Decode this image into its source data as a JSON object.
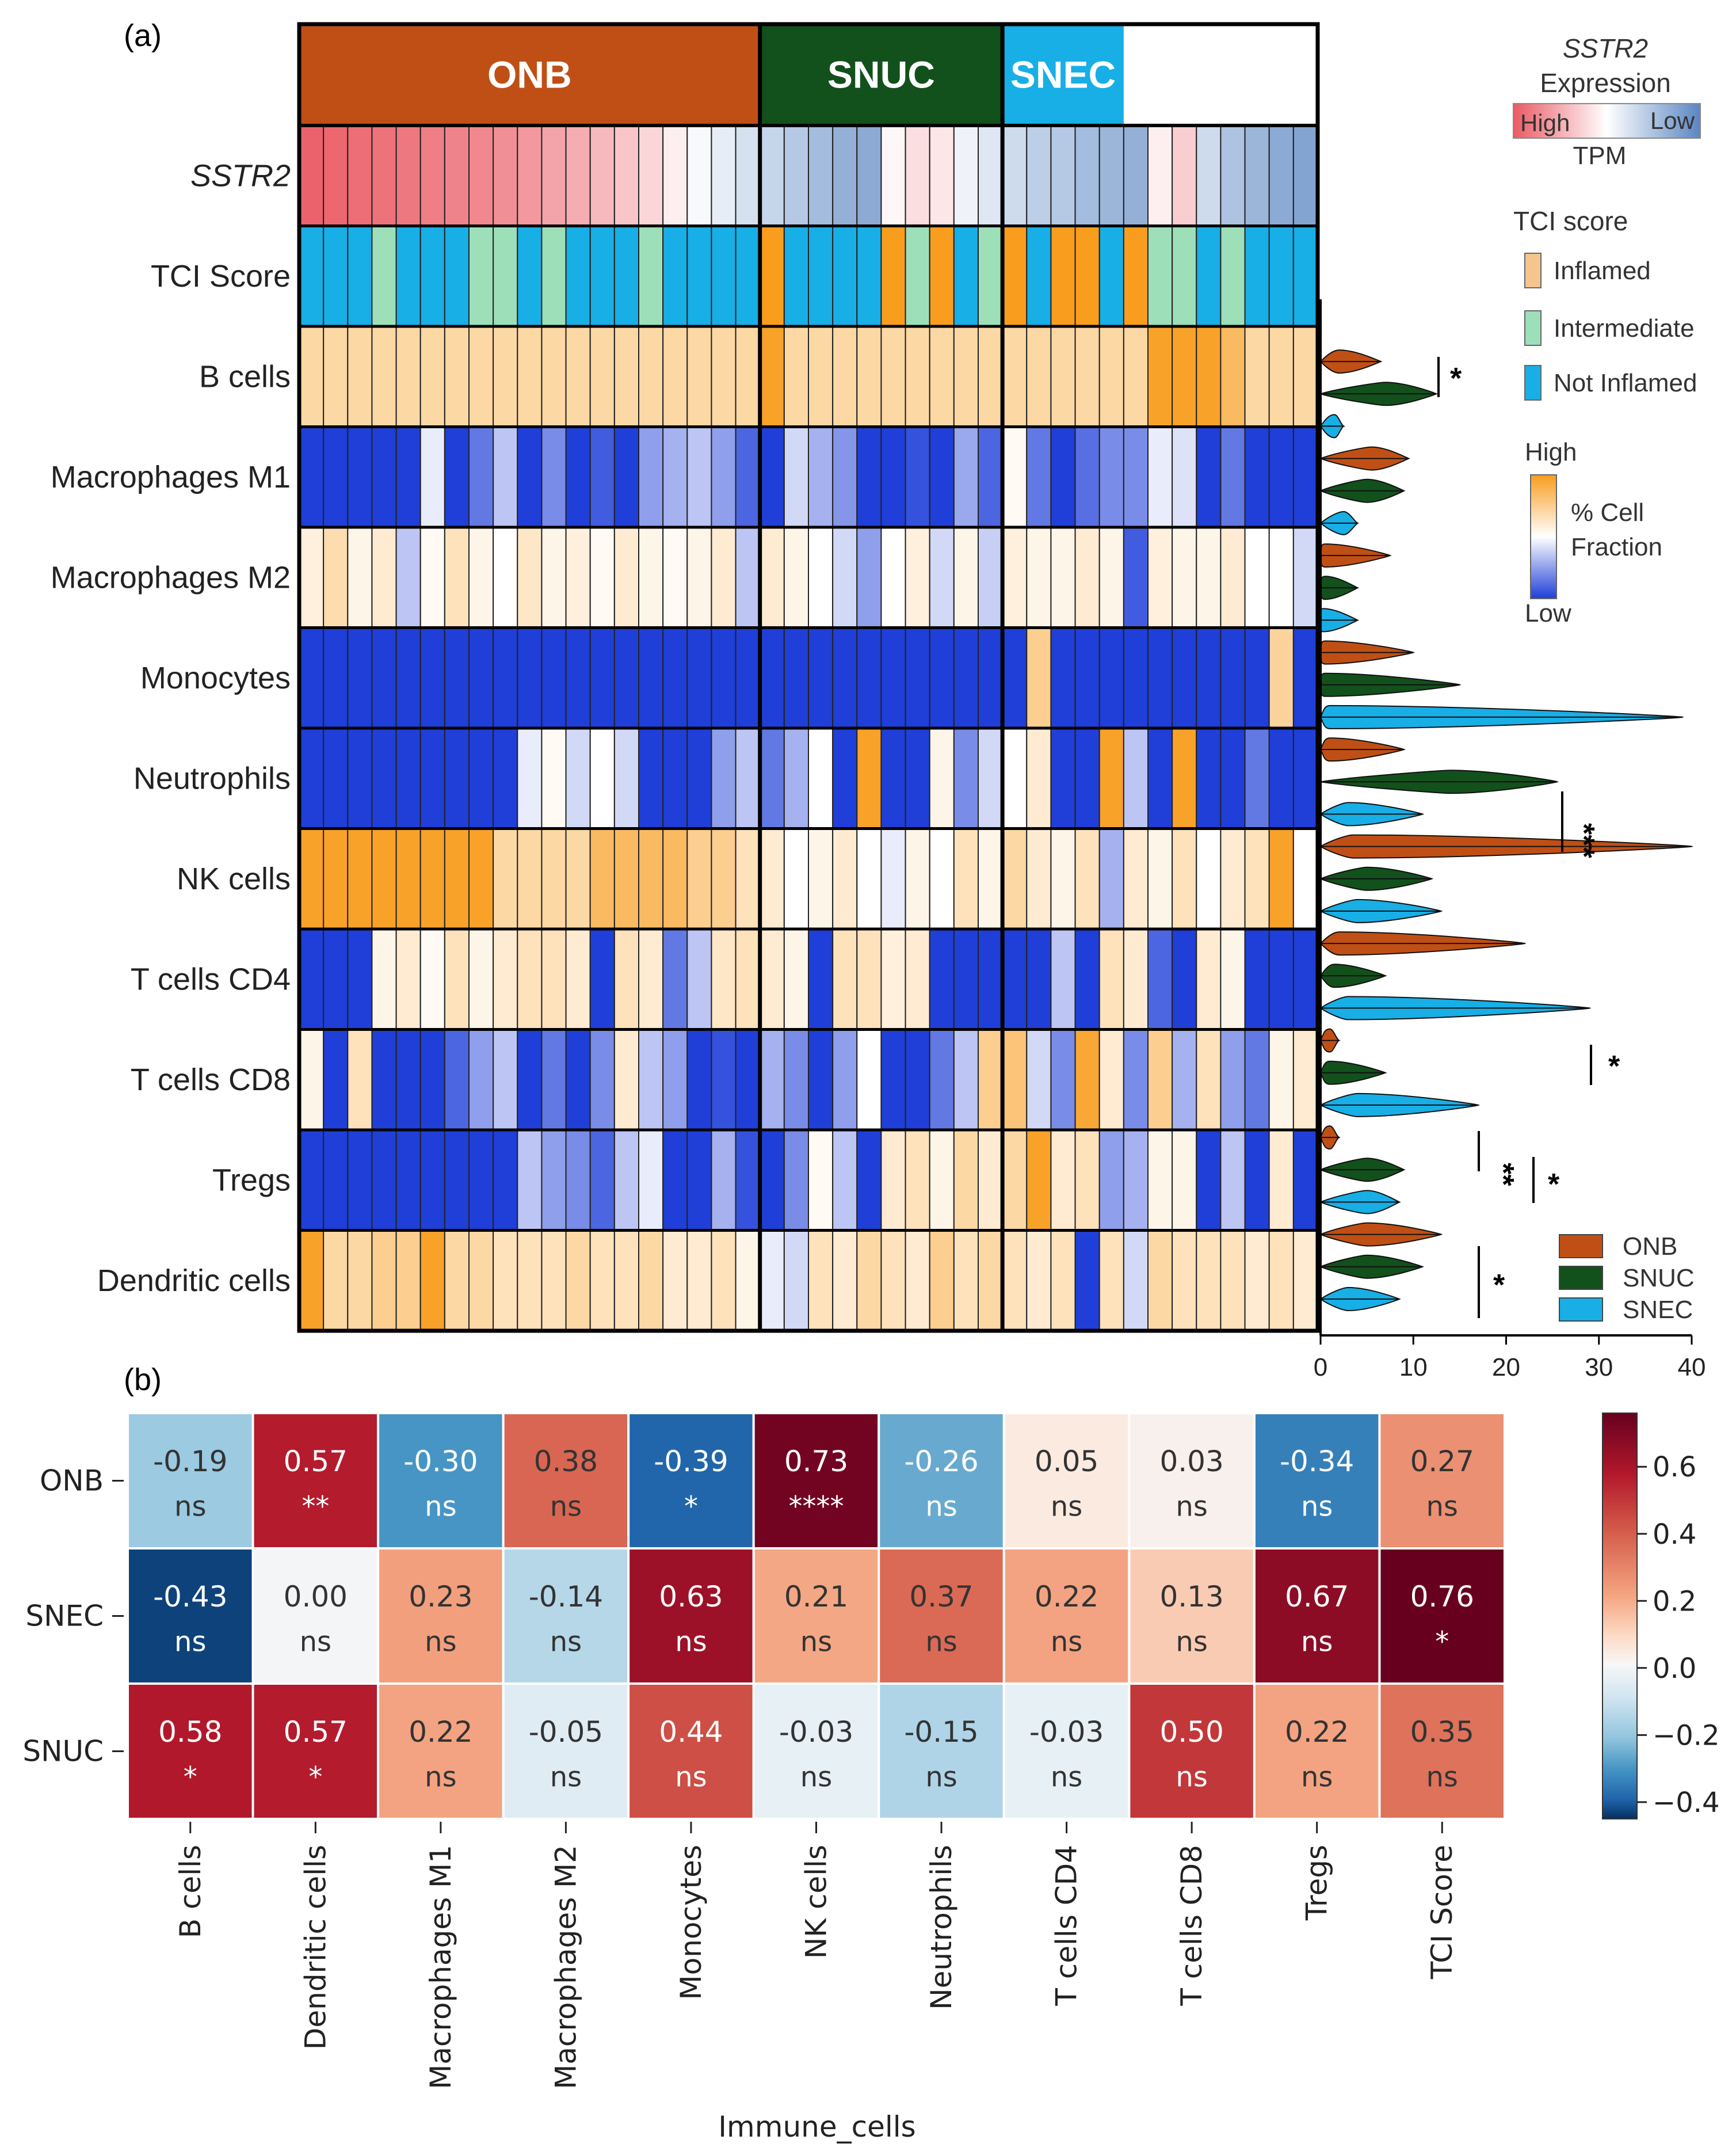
{
  "panel_labels": {
    "a": "(a)",
    "b": "(b)"
  },
  "colors": {
    "onb": "#c04f15",
    "snuc": "#12501c",
    "snec": "#18aee6",
    "inflamed": "#f4c58f",
    "intermediate": "#9ddfb9",
    "not_inflamed": "#18aee6",
    "frac_low": "#1f3fd8",
    "frac_mid": "#ffffff",
    "frac_high": "#f89d1e",
    "sstr2_high": "#ea5a64",
    "sstr2_low": "#5a86c2"
  },
  "chart_data": [
    {
      "type": "heatmap",
      "panel": "(a)",
      "groups": [
        {
          "name": "ONB",
          "n": 19
        },
        {
          "name": "SNUC",
          "n": 10
        },
        {
          "name": "SNEC",
          "n": 5
        }
      ],
      "rows": [
        "SSTR2",
        "TCI Score",
        "B cells",
        "Macrophages M1",
        "Macrophages M2",
        "Monocytes",
        "Neutrophils",
        "NK cells",
        "T cells CD4",
        "T cells CD8",
        "Tregs",
        "Dendritic cells"
      ],
      "sstr2_tpm_scaled": [
        0.95,
        0.92,
        0.88,
        0.85,
        0.82,
        0.78,
        0.75,
        0.72,
        0.68,
        0.62,
        0.55,
        0.5,
        0.42,
        0.35,
        0.25,
        0.1,
        -0.05,
        -0.15,
        -0.25,
        -0.35,
        -0.45,
        -0.55,
        -0.65,
        -0.7,
        0.05,
        0.2,
        0.15,
        -0.1,
        -0.2,
        -0.3,
        -0.4,
        -0.45,
        -0.55,
        -0.6,
        -0.65,
        0.1,
        0.3,
        -0.3,
        -0.5,
        -0.6,
        -0.7,
        -0.75
      ],
      "tci_score": [
        "N",
        "N",
        "N",
        "I",
        "N",
        "N",
        "N",
        "I",
        "I",
        "N",
        "I",
        "N",
        "N",
        "N",
        "I",
        "N",
        "N",
        "N",
        "N",
        "F",
        "N",
        "N",
        "N",
        "N",
        "F",
        "I",
        "F",
        "N",
        "I",
        "F",
        "N",
        "F",
        "F",
        "N",
        "F",
        "I",
        "I",
        "N",
        "I",
        "N",
        "N",
        "N"
      ],
      "cell_fraction_scaled": {
        "B cells": [
          0.4,
          0.4,
          0.4,
          0.4,
          0.4,
          0.4,
          0.4,
          0.4,
          0.4,
          0.4,
          0.4,
          0.4,
          0.4,
          0.4,
          0.4,
          0.4,
          0.4,
          0.4,
          0.4,
          0.95,
          0.4,
          0.4,
          0.4,
          0.4,
          0.4,
          0.4,
          0.4,
          0.4,
          0.4,
          0.4,
          0.4,
          0.4,
          0.4,
          0.4,
          0.4,
          0.95,
          0.95,
          0.95,
          0.7,
          0.4,
          0.4,
          0.4
        ],
        "Macrophages M1": [
          -1,
          -1,
          -1,
          -1,
          -1,
          -0.1,
          -1,
          -0.7,
          -0.3,
          -1,
          -0.6,
          -1,
          -0.85,
          -1,
          -0.5,
          -0.4,
          -0.3,
          -0.5,
          -0.8,
          -1,
          -0.2,
          -0.4,
          -0.55,
          -1,
          -1,
          -0.9,
          -1,
          -0.45,
          -0.8,
          0.05,
          -0.7,
          -1,
          -0.75,
          -0.6,
          -0.6,
          -0.1,
          -0.15,
          -1,
          -0.7,
          -1,
          -1,
          -1
        ],
        "Macrophages M2": [
          0.15,
          0.35,
          0.1,
          0.2,
          -0.3,
          0.05,
          0.3,
          0.1,
          0.0,
          0.25,
          0.1,
          0.15,
          0.05,
          0.2,
          0.1,
          0.05,
          0.1,
          0.2,
          -0.3,
          0.2,
          0.1,
          0.0,
          -0.2,
          -0.5,
          0.0,
          0.15,
          -0.2,
          0.1,
          -0.25,
          0.15,
          0.1,
          0.1,
          0.2,
          0.1,
          -0.85,
          0.15,
          0.1,
          0.1,
          0.2,
          0.0,
          0.0,
          -0.2
        ],
        "Monocytes": [
          -1,
          -1,
          -1,
          -1,
          -1,
          -1,
          -1,
          -1,
          -1,
          -1,
          -1,
          -1,
          -1,
          -1,
          -1,
          -1,
          -1,
          -1,
          -1,
          -1,
          -1,
          -1,
          -1,
          -1,
          -1,
          -1,
          -1,
          -1,
          -1,
          -1,
          0.5,
          -1,
          -1,
          -1,
          -1,
          -1,
          -1,
          -1,
          -1,
          -1,
          0.45,
          -1
        ],
        "Neutrophils": [
          -1,
          -1,
          -1,
          -1,
          -1,
          -1,
          -1,
          -1,
          -1,
          -0.1,
          0.05,
          -0.2,
          0.0,
          -0.2,
          -1,
          -1,
          -1,
          -0.5,
          -0.3,
          -0.7,
          -0.4,
          0.0,
          -1,
          0.95,
          -1,
          -1,
          0.1,
          -0.6,
          -0.2,
          0.0,
          0.2,
          -1,
          -1,
          0.95,
          -0.3,
          -1,
          0.95,
          -1,
          -1,
          -0.7,
          -1,
          -1
        ],
        "NK cells": [
          0.95,
          0.95,
          0.95,
          0.95,
          0.95,
          0.95,
          0.95,
          0.95,
          0.4,
          0.4,
          0.4,
          0.4,
          0.7,
          0.7,
          0.7,
          0.7,
          0.5,
          0.5,
          0.3,
          0.2,
          0.0,
          0.1,
          0.2,
          0.0,
          -0.1,
          0.1,
          0.0,
          0.3,
          0.1,
          0.4,
          0.2,
          0.1,
          0.3,
          -0.4,
          0.2,
          0.1,
          0.3,
          0.0,
          0.2,
          0.3,
          0.95,
          0.0
        ],
        "T cells CD4": [
          -1,
          -1,
          -1,
          0.1,
          0.2,
          0.05,
          0.3,
          0.1,
          0.2,
          0.3,
          0.3,
          0.2,
          -1,
          0.3,
          0.2,
          -0.7,
          -0.3,
          0.25,
          0.3,
          0.2,
          0.1,
          -1,
          0.3,
          0.3,
          0.15,
          0.2,
          -1,
          -1,
          -1,
          -1,
          -1,
          -0.3,
          -1,
          0.3,
          0.2,
          -0.8,
          -1,
          0.2,
          0.1,
          -1,
          -1,
          -1
        ],
        "T cells CD8": [
          0.1,
          -1,
          0.3,
          -1,
          -1,
          -1,
          -0.8,
          -0.5,
          -0.3,
          -1,
          -0.7,
          -1,
          -0.6,
          0.2,
          -0.3,
          -0.5,
          -1,
          -0.9,
          -1,
          -0.4,
          -0.6,
          -1,
          -0.5,
          0.0,
          -1,
          -1,
          -0.7,
          -0.3,
          0.5,
          0.6,
          -0.2,
          -0.6,
          0.9,
          0.2,
          -0.6,
          0.5,
          -0.4,
          0.3,
          -0.5,
          -0.7,
          0.1,
          0.2
        ],
        "Tregs": [
          -1,
          -1,
          -1,
          -1,
          -1,
          -1,
          -1,
          -1,
          -1,
          -0.3,
          -0.5,
          -0.6,
          -0.8,
          -0.3,
          -0.1,
          -1,
          -1,
          -0.4,
          -0.9,
          -1,
          -0.6,
          0.05,
          -0.3,
          -1,
          0.2,
          0.3,
          0.1,
          0.4,
          0.2,
          0.4,
          0.95,
          0.2,
          0.3,
          -0.5,
          -0.4,
          0.1,
          0.1,
          -1,
          -0.3,
          -1,
          0.2,
          -1
        ],
        "Dendritic cells": [
          0.95,
          0.4,
          0.4,
          0.5,
          0.5,
          0.95,
          0.4,
          0.4,
          0.3,
          0.3,
          0.3,
          0.4,
          0.3,
          0.3,
          0.4,
          0.2,
          0.2,
          0.3,
          0.1,
          -0.1,
          -0.2,
          0.3,
          0.2,
          0.4,
          0.3,
          0.2,
          0.5,
          0.3,
          0.4,
          0.3,
          0.2,
          0.3,
          -1,
          0.3,
          -0.2,
          0.4,
          0.3,
          0.3,
          0.3,
          0.2,
          0.3,
          0.2
        ]
      }
    },
    {
      "type": "violin",
      "panel": "(a) side",
      "xlabel": "",
      "x_ticks": [
        "0",
        "10",
        "20",
        "30",
        "40"
      ],
      "xlim": [
        0,
        40
      ],
      "series_order": [
        "ONB",
        "SNUC",
        "SNEC"
      ],
      "rows": [
        {
          "name": "B cells",
          "ONB": {
            "median": 2,
            "max": 6.5
          },
          "SNUC": {
            "median": 7,
            "max": 12.5
          },
          "SNEC": {
            "median": 1.5,
            "max": 2.5
          }
        },
        {
          "name": "Macrophages M1",
          "ONB": {
            "median": 5.5,
            "max": 9.5
          },
          "SNUC": {
            "median": 5,
            "max": 9
          },
          "SNEC": {
            "median": 2.5,
            "max": 4
          }
        },
        {
          "name": "Macrophages M2",
          "ONB": {
            "median": 0.5,
            "max": 7.5
          },
          "SNUC": {
            "median": 0.5,
            "max": 4
          },
          "SNEC": {
            "median": 0.3,
            "max": 4
          }
        },
        {
          "name": "Monocytes",
          "ONB": {
            "median": 0.5,
            "max": 10
          },
          "SNUC": {
            "median": 0.5,
            "max": 15
          },
          "SNEC": {
            "median": 1,
            "max": 39
          }
        },
        {
          "name": "Neutrophils",
          "ONB": {
            "median": 1,
            "max": 9
          },
          "SNUC": {
            "median": 14,
            "max": 25.5
          },
          "SNEC": {
            "median": 3,
            "max": 11
          }
        },
        {
          "name": "NK cells",
          "ONB": {
            "median": 3.5,
            "max": 40
          },
          "SNUC": {
            "median": 5,
            "max": 12
          },
          "SNEC": {
            "median": 4,
            "max": 13
          }
        },
        {
          "name": "T cells CD4",
          "ONB": {
            "median": 2,
            "max": 22
          },
          "SNUC": {
            "median": 1.5,
            "max": 7
          },
          "SNEC": {
            "median": 3,
            "max": 29
          }
        },
        {
          "name": "T cells CD8",
          "ONB": {
            "median": 1,
            "max": 2
          },
          "SNUC": {
            "median": 1,
            "max": 7
          },
          "SNEC": {
            "median": 4,
            "max": 17
          }
        },
        {
          "name": "Tregs",
          "ONB": {
            "median": 1,
            "max": 2
          },
          "SNUC": {
            "median": 5,
            "max": 9
          },
          "SNEC": {
            "median": 5,
            "max": 8.5
          }
        }
      ],
      "significance": [
        {
          "label": "*",
          "comparison": "B cells"
        },
        {
          "label": "***",
          "comparison": "Neutrophils"
        },
        {
          "label": "*",
          "comparison": "T cells CD8"
        },
        {
          "label": "**",
          "comparison": "Tregs (1)"
        },
        {
          "label": "*",
          "comparison": "Tregs (2)"
        },
        {
          "label": "*",
          "comparison": "Dendritic cells"
        }
      ]
    },
    {
      "type": "heatmap",
      "panel": "(b)",
      "rows": [
        "ONB",
        "SNEC",
        "SNUC"
      ],
      "columns": [
        "B cells",
        "Dendritic cells",
        "Macrophages M1",
        "Macrophages M2",
        "Monocytes",
        "NK cells",
        "Neutrophils",
        "T cells CD4",
        "T cells CD8",
        "Tregs",
        "TCI Score"
      ],
      "xlabel": "Immune_cells",
      "values": [
        [
          -0.19,
          0.57,
          -0.3,
          0.38,
          -0.39,
          0.73,
          -0.26,
          0.05,
          0.03,
          -0.34,
          0.27
        ],
        [
          -0.43,
          0.0,
          0.23,
          -0.14,
          0.63,
          0.21,
          0.37,
          0.22,
          0.13,
          0.67,
          0.76
        ],
        [
          0.58,
          0.57,
          0.22,
          -0.05,
          0.44,
          -0.03,
          -0.15,
          -0.03,
          0.5,
          0.22,
          0.35
        ]
      ],
      "labels": [
        [
          "-0.19",
          "0.57",
          "-0.30",
          "0.38",
          "-0.39",
          "0.73",
          "-0.26",
          "0.05",
          "0.03",
          "-0.34",
          "0.27"
        ],
        [
          "-0.43",
          "0.00",
          "0.23",
          "-0.14",
          "0.63",
          "0.21",
          "0.37",
          "0.22",
          "0.13",
          "0.67",
          "0.76"
        ],
        [
          "0.58",
          "0.57",
          "0.22",
          "-0.05",
          "0.44",
          "-0.03",
          "-0.15",
          "-0.03",
          "0.50",
          "0.22",
          "0.35"
        ]
      ],
      "significance": [
        [
          "ns",
          "**",
          "ns",
          "ns",
          "*",
          "****",
          "ns",
          "ns",
          "ns",
          "ns",
          "ns"
        ],
        [
          "ns",
          "ns",
          "ns",
          "ns",
          "ns",
          "ns",
          "ns",
          "ns",
          "ns",
          "ns",
          "*"
        ],
        [
          "*",
          "*",
          "ns",
          "ns",
          "ns",
          "ns",
          "ns",
          "ns",
          "ns",
          "ns",
          "ns"
        ]
      ],
      "colorbar": {
        "min": -0.45,
        "max": 0.76,
        "ticks": [
          "0.6",
          "0.4",
          "0.2",
          "0.0",
          "−0.2",
          "−0.4"
        ],
        "tick_values": [
          0.6,
          0.4,
          0.2,
          0.0,
          -0.2,
          -0.4
        ]
      }
    }
  ],
  "legend": {
    "sstr2_title": "SSTR2",
    "expression": "Expression",
    "high": "High",
    "low": "Low",
    "tpm": "TPM",
    "tci_title": "TCI score",
    "inflamed": "Inflamed",
    "intermediate": "Intermediate",
    "not_inflamed": "Not Inflamed",
    "frac_high": "High",
    "frac_label1": "% Cell",
    "frac_label2": "Fraction",
    "frac_low": "Low",
    "onb": "ONB",
    "snuc": "SNUC",
    "snec": "SNEC"
  }
}
